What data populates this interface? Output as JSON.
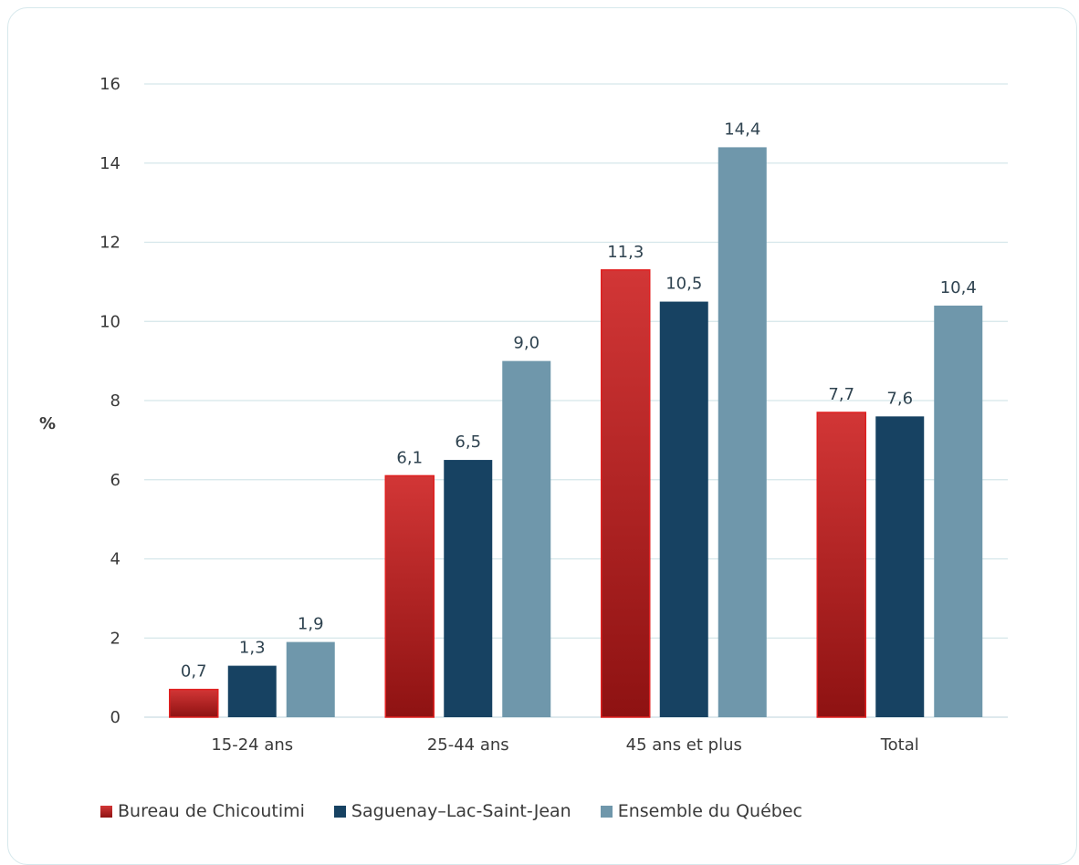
{
  "chart_data": {
    "type": "bar",
    "ylabel": "%",
    "ylim": [
      0,
      16
    ],
    "yticks": [
      "0",
      "2",
      "4",
      "6",
      "8",
      "10",
      "12",
      "14",
      "16"
    ],
    "categories": [
      "15-24 ans",
      "25-44 ans",
      "45 ans et plus",
      "Total"
    ],
    "series": [
      {
        "name": "Bureau de Chicoutimi",
        "color": "#c0292b",
        "values": [
          0.7,
          6.1,
          11.3,
          7.7
        ],
        "labels": [
          "0,7",
          "6,1",
          "11,3",
          "7,7"
        ]
      },
      {
        "name": "Saguenay–Lac-Saint-Jean",
        "color": "#174262",
        "values": [
          1.3,
          6.5,
          10.5,
          7.6
        ],
        "labels": [
          "1,3",
          "6,5",
          "10,5",
          "7,6"
        ]
      },
      {
        "name": "Ensemble du Québec",
        "color": "#6f97ab",
        "values": [
          1.9,
          9.0,
          14.4,
          10.4
        ],
        "labels": [
          "1,9",
          "9,0",
          "14,4",
          "10,4"
        ]
      }
    ],
    "grid": true,
    "legend_position": "bottom"
  }
}
